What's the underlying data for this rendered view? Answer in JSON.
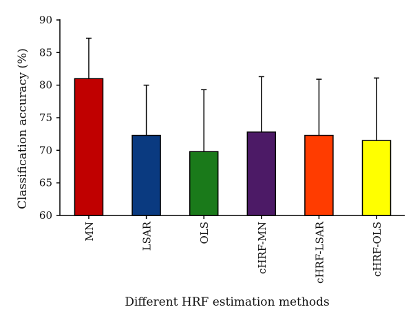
{
  "chart_data": {
    "type": "bar",
    "title": "",
    "xlabel": "Different HRF estimation methods",
    "ylabel": "Classification accuracy (%)",
    "ylim": [
      60,
      90
    ],
    "yticks": [
      60,
      65,
      70,
      75,
      80,
      85,
      90
    ],
    "grid": false,
    "legend": "none",
    "categories": [
      "MN",
      "LSAR",
      "OLS",
      "cHRF-MN",
      "cHRF-LSAR",
      "cHRF-OLS"
    ],
    "values": [
      81.0,
      72.3,
      69.8,
      72.8,
      72.3,
      71.5
    ],
    "error_upper": [
      87.2,
      80.0,
      79.3,
      81.3,
      80.9,
      81.1
    ],
    "colors": [
      "#c00000",
      "#0a3a80",
      "#1a7a1a",
      "#4c1a66",
      "#ff3c00",
      "#ffff00"
    ]
  }
}
